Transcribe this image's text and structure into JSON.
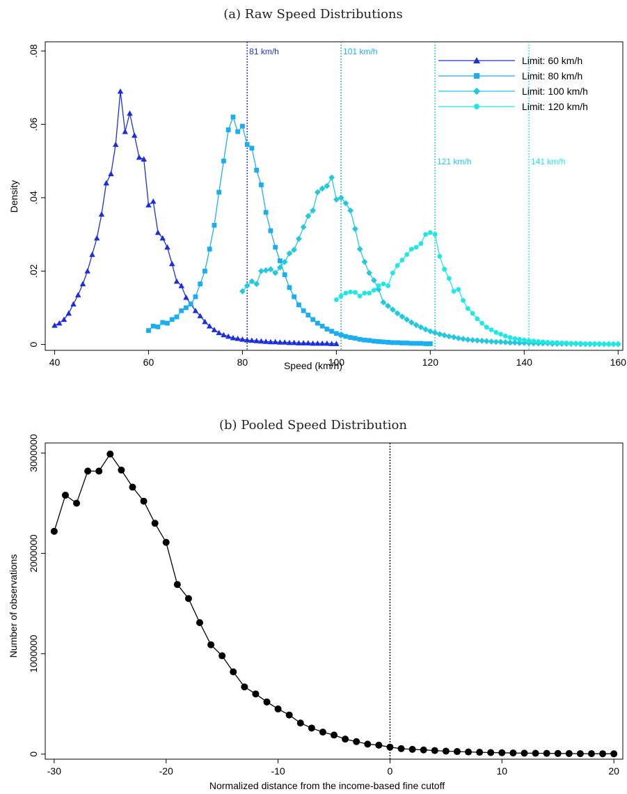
{
  "chart_data": [
    {
      "type": "line",
      "title": "(a) Raw Speed Distributions",
      "xlabel": "Speed (km/h)",
      "ylabel": "Density",
      "xlim": [
        38,
        161
      ],
      "ylim": [
        -0.0016,
        0.0825
      ],
      "xticks": [
        40,
        60,
        80,
        100,
        120,
        140,
        160
      ],
      "yticks": [
        0,
        0.02,
        0.04,
        0.06,
        0.08
      ],
      "ytick_labels": [
        "0",
        ".02",
        ".04",
        ".06",
        ".08"
      ],
      "grid": false,
      "legend_position": "top-right",
      "series": [
        {
          "name": "Limit: 60 km/h",
          "color": "#1a2ee0",
          "marker": "triangle",
          "x": [
            40,
            41,
            42,
            43,
            44,
            45,
            46,
            47,
            48,
            49,
            50,
            51,
            52,
            53,
            54,
            55,
            56,
            57,
            58,
            59,
            60,
            61,
            62,
            63,
            64,
            65,
            66,
            67,
            68,
            69,
            70,
            71,
            72,
            73,
            74,
            75,
            76,
            77,
            78,
            79,
            80,
            81,
            82,
            83,
            84,
            85,
            86,
            87,
            88,
            89,
            90,
            91,
            92,
            93,
            94,
            95,
            96,
            97,
            98,
            99,
            100
          ],
          "y": [
            0.0052,
            0.0058,
            0.0068,
            0.0085,
            0.011,
            0.0135,
            0.0165,
            0.02,
            0.0245,
            0.029,
            0.0355,
            0.044,
            0.0465,
            0.0545,
            0.069,
            0.058,
            0.063,
            0.057,
            0.051,
            0.0505,
            0.038,
            0.039,
            0.0305,
            0.029,
            0.0265,
            0.022,
            0.0172,
            0.016,
            0.0128,
            0.011,
            0.0092,
            0.0078,
            0.0062,
            0.005,
            0.004,
            0.0032,
            0.0026,
            0.0022,
            0.0018,
            0.0016,
            0.0014,
            0.0012,
            0.0011,
            0.001,
            0.0009,
            0.0008,
            0.0007,
            0.0007,
            0.0006,
            0.0006,
            0.0005,
            0.0005,
            0.0004,
            0.0004,
            0.0004,
            0.0003,
            0.0003,
            0.0003,
            0.0003,
            0.0002,
            0.0002
          ]
        },
        {
          "name": "Limit: 80 km/h",
          "color": "#1aaef0",
          "marker": "square",
          "x": [
            60,
            61,
            62,
            63,
            64,
            65,
            66,
            67,
            68,
            69,
            70,
            71,
            72,
            73,
            74,
            75,
            76,
            77,
            78,
            79,
            80,
            81,
            82,
            83,
            84,
            85,
            86,
            87,
            88,
            89,
            90,
            91,
            92,
            93,
            94,
            95,
            96,
            97,
            98,
            99,
            100,
            101,
            102,
            103,
            104,
            105,
            106,
            107,
            108,
            109,
            110,
            111,
            112,
            113,
            114,
            115,
            116,
            117,
            118,
            119,
            120
          ],
          "y": [
            0.0038,
            0.005,
            0.0048,
            0.006,
            0.0058,
            0.0068,
            0.0075,
            0.0092,
            0.01,
            0.011,
            0.013,
            0.0165,
            0.02,
            0.026,
            0.0325,
            0.0415,
            0.05,
            0.0585,
            0.062,
            0.058,
            0.0595,
            0.0545,
            0.0535,
            0.0475,
            0.0435,
            0.036,
            0.031,
            0.0265,
            0.0228,
            0.019,
            0.0155,
            0.013,
            0.0108,
            0.0092,
            0.008,
            0.0068,
            0.0058,
            0.005,
            0.0042,
            0.0036,
            0.003,
            0.0026,
            0.0022,
            0.0019,
            0.0017,
            0.0014,
            0.0012,
            0.0011,
            0.0009,
            0.0008,
            0.0007,
            0.0006,
            0.0005,
            0.0005,
            0.0004,
            0.0004,
            0.0003,
            0.0003,
            0.0003,
            0.0002,
            0.0002
          ]
        },
        {
          "name": "Limit: 100 km/h",
          "color": "#22c8de",
          "marker": "diamond",
          "x": [
            80,
            81,
            82,
            83,
            84,
            85,
            86,
            87,
            88,
            89,
            90,
            91,
            92,
            93,
            94,
            95,
            96,
            97,
            98,
            99,
            100,
            101,
            102,
            103,
            104,
            105,
            106,
            107,
            108,
            109,
            110,
            111,
            112,
            113,
            114,
            115,
            116,
            117,
            118,
            119,
            120,
            121,
            122,
            123,
            124,
            125,
            126,
            127,
            128,
            129,
            130,
            131,
            132,
            133,
            134,
            135,
            136,
            137,
            138,
            139,
            140,
            141,
            142,
            143,
            144,
            145,
            146,
            147,
            148,
            149,
            150,
            151,
            152,
            153,
            154,
            155,
            156,
            157,
            158,
            159,
            160
          ],
          "y": [
            0.0145,
            0.016,
            0.0172,
            0.0165,
            0.02,
            0.0202,
            0.0205,
            0.0195,
            0.021,
            0.0225,
            0.0248,
            0.0258,
            0.0288,
            0.032,
            0.035,
            0.0365,
            0.0415,
            0.0425,
            0.0432,
            0.0455,
            0.0395,
            0.04,
            0.0385,
            0.0365,
            0.0315,
            0.026,
            0.0225,
            0.0195,
            0.0175,
            0.015,
            0.0115,
            0.0105,
            0.0095,
            0.0085,
            0.0076,
            0.0068,
            0.006,
            0.0053,
            0.0047,
            0.0041,
            0.0036,
            0.0032,
            0.0028,
            0.0025,
            0.0022,
            0.002,
            0.0017,
            0.0015,
            0.0013,
            0.0012,
            0.0011,
            0.001,
            0.0009,
            0.0008,
            0.0007,
            0.0007,
            0.0006,
            0.0005,
            0.0005,
            0.0004,
            0.0004,
            0.0004,
            0.0003,
            0.0003,
            0.0003,
            0.0003,
            0.0002,
            0.0002,
            0.0002,
            0.0002,
            0.0002,
            0.0002,
            0.0001,
            0.0001,
            0.0001,
            0.0001,
            0.0001,
            0.0001,
            0.0001,
            0.0001,
            0.0001
          ]
        },
        {
          "name": "Limit: 120 km/h",
          "color": "#1ee8e4",
          "marker": "circle",
          "x": [
            100,
            101,
            102,
            103,
            104,
            105,
            106,
            107,
            108,
            109,
            110,
            111,
            112,
            113,
            114,
            115,
            116,
            117,
            118,
            119,
            120,
            121,
            122,
            123,
            124,
            125,
            126,
            127,
            128,
            129,
            130,
            131,
            132,
            133,
            134,
            135,
            136,
            137,
            138,
            139,
            140,
            141,
            142,
            143,
            144,
            145,
            146,
            147,
            148,
            149,
            150,
            151,
            152,
            153,
            154,
            155,
            156,
            157,
            158,
            159,
            160
          ],
          "y": [
            0.0122,
            0.0132,
            0.014,
            0.0143,
            0.0142,
            0.0132,
            0.014,
            0.014,
            0.0148,
            0.016,
            0.0165,
            0.016,
            0.0195,
            0.0215,
            0.023,
            0.0245,
            0.026,
            0.0265,
            0.0275,
            0.03,
            0.0305,
            0.03,
            0.024,
            0.0205,
            0.018,
            0.0145,
            0.015,
            0.012,
            0.0098,
            0.0085,
            0.007,
            0.0058,
            0.0047,
            0.004,
            0.0033,
            0.0028,
            0.0023,
            0.0019,
            0.0016,
            0.0014,
            0.0012,
            0.001,
            0.0009,
            0.0008,
            0.0007,
            0.0006,
            0.0005,
            0.0005,
            0.0004,
            0.0004,
            0.0003,
            0.0003,
            0.0003,
            0.0002,
            0.0002,
            0.0002,
            0.0002,
            0.0001,
            0.0001,
            0.0001,
            0.0001
          ]
        }
      ],
      "cutoff_lines": [
        {
          "x": 81,
          "label": "81 km/h",
          "color": "#1a2ee0",
          "label_y": 0.08
        },
        {
          "x": 101,
          "label": "101 km/h",
          "color": "#1aaef0",
          "label_y": 0.08
        },
        {
          "x": 121,
          "label": "121 km/h",
          "color": "#22c8de",
          "label_y": 0.05
        },
        {
          "x": 141,
          "label": "141 km/h",
          "color": "#1ee8e4",
          "label_y": 0.05
        }
      ]
    },
    {
      "type": "line",
      "title": "(b) Pooled Speed Distribution",
      "xlabel": "Normalized distance from the income-based fine cutoff",
      "ylabel": "Number of observations",
      "xlim": [
        -30.8,
        20.8
      ],
      "ylim": [
        -50000,
        3100000
      ],
      "xticks": [
        -30,
        -20,
        -10,
        0,
        10,
        20
      ],
      "yticks": [
        0,
        1000000,
        2000000,
        3000000
      ],
      "ytick_labels": [
        "0",
        "1000000",
        "2000000",
        "3000000"
      ],
      "grid": false,
      "cutoff_x": 0,
      "series": [
        {
          "color": "#000000",
          "marker": "circle",
          "x": [
            -30,
            -29,
            -28,
            -27,
            -26,
            -25,
            -24,
            -23,
            -22,
            -21,
            -20,
            -19,
            -18,
            -17,
            -16,
            -15,
            -14,
            -13,
            -12,
            -11,
            -10,
            -9,
            -8,
            -7,
            -6,
            -5,
            -4,
            -3,
            -2,
            -1,
            0,
            1,
            2,
            3,
            4,
            5,
            6,
            7,
            8,
            9,
            10,
            11,
            12,
            13,
            14,
            15,
            16,
            17,
            18,
            19,
            20
          ],
          "y": [
            2220000,
            2580000,
            2500000,
            2820000,
            2820000,
            2990000,
            2830000,
            2660000,
            2520000,
            2300000,
            2110000,
            1690000,
            1550000,
            1310000,
            1090000,
            980000,
            820000,
            670000,
            600000,
            520000,
            450000,
            390000,
            310000,
            260000,
            220000,
            190000,
            150000,
            125000,
            100000,
            90000,
            70000,
            55000,
            48000,
            42000,
            36000,
            30000,
            26000,
            22000,
            19000,
            16000,
            14000,
            12000,
            10000,
            9000,
            8000,
            7000,
            6000,
            5000,
            4500,
            4000,
            3500
          ]
        }
      ]
    }
  ]
}
